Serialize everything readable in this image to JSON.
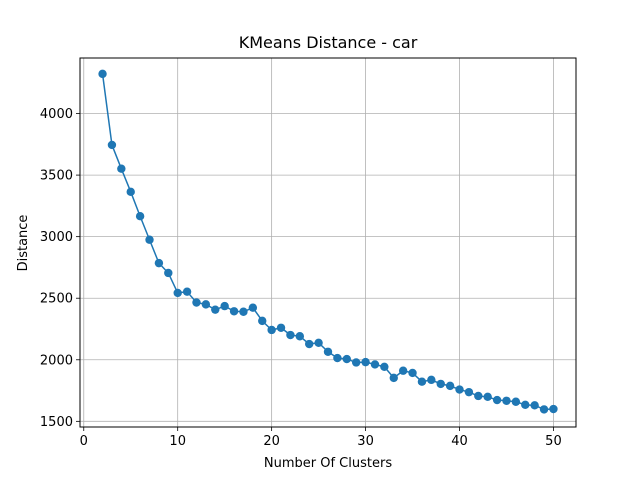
{
  "chart_data": {
    "type": "line",
    "title": "KMeans Distance - car",
    "xlabel": "Number Of Clusters",
    "ylabel": "Distance",
    "xlim": [
      -0.4,
      52.4
    ],
    "ylim": [
      1454,
      4451
    ],
    "xticks": [
      0,
      10,
      20,
      30,
      40,
      50
    ],
    "yticks": [
      1500,
      2000,
      2500,
      3000,
      3500,
      4000
    ],
    "grid": true,
    "marker": "circle",
    "color": "#1f77b4",
    "series": [
      {
        "x": [
          2,
          3,
          4,
          5,
          6,
          7,
          8,
          9,
          10,
          11,
          12,
          13,
          14,
          15,
          16,
          17,
          18,
          19,
          20,
          21,
          22,
          23,
          24,
          25,
          26,
          27,
          28,
          29,
          30,
          31,
          32,
          33,
          34,
          35,
          36,
          37,
          38,
          39,
          40,
          41,
          42,
          43,
          44,
          45,
          46,
          47,
          48,
          49,
          50
        ],
        "values": [
          4322,
          3745,
          3552,
          3364,
          3166,
          2975,
          2785,
          2705,
          2543,
          2553,
          2465,
          2450,
          2407,
          2436,
          2394,
          2390,
          2423,
          2316,
          2242,
          2260,
          2201,
          2191,
          2128,
          2138,
          2065,
          2014,
          2006,
          1978,
          1981,
          1962,
          1943,
          1853,
          1911,
          1893,
          1822,
          1837,
          1804,
          1788,
          1758,
          1737,
          1706,
          1699,
          1673,
          1667,
          1659,
          1634,
          1630,
          1597,
          1600
        ]
      }
    ]
  }
}
